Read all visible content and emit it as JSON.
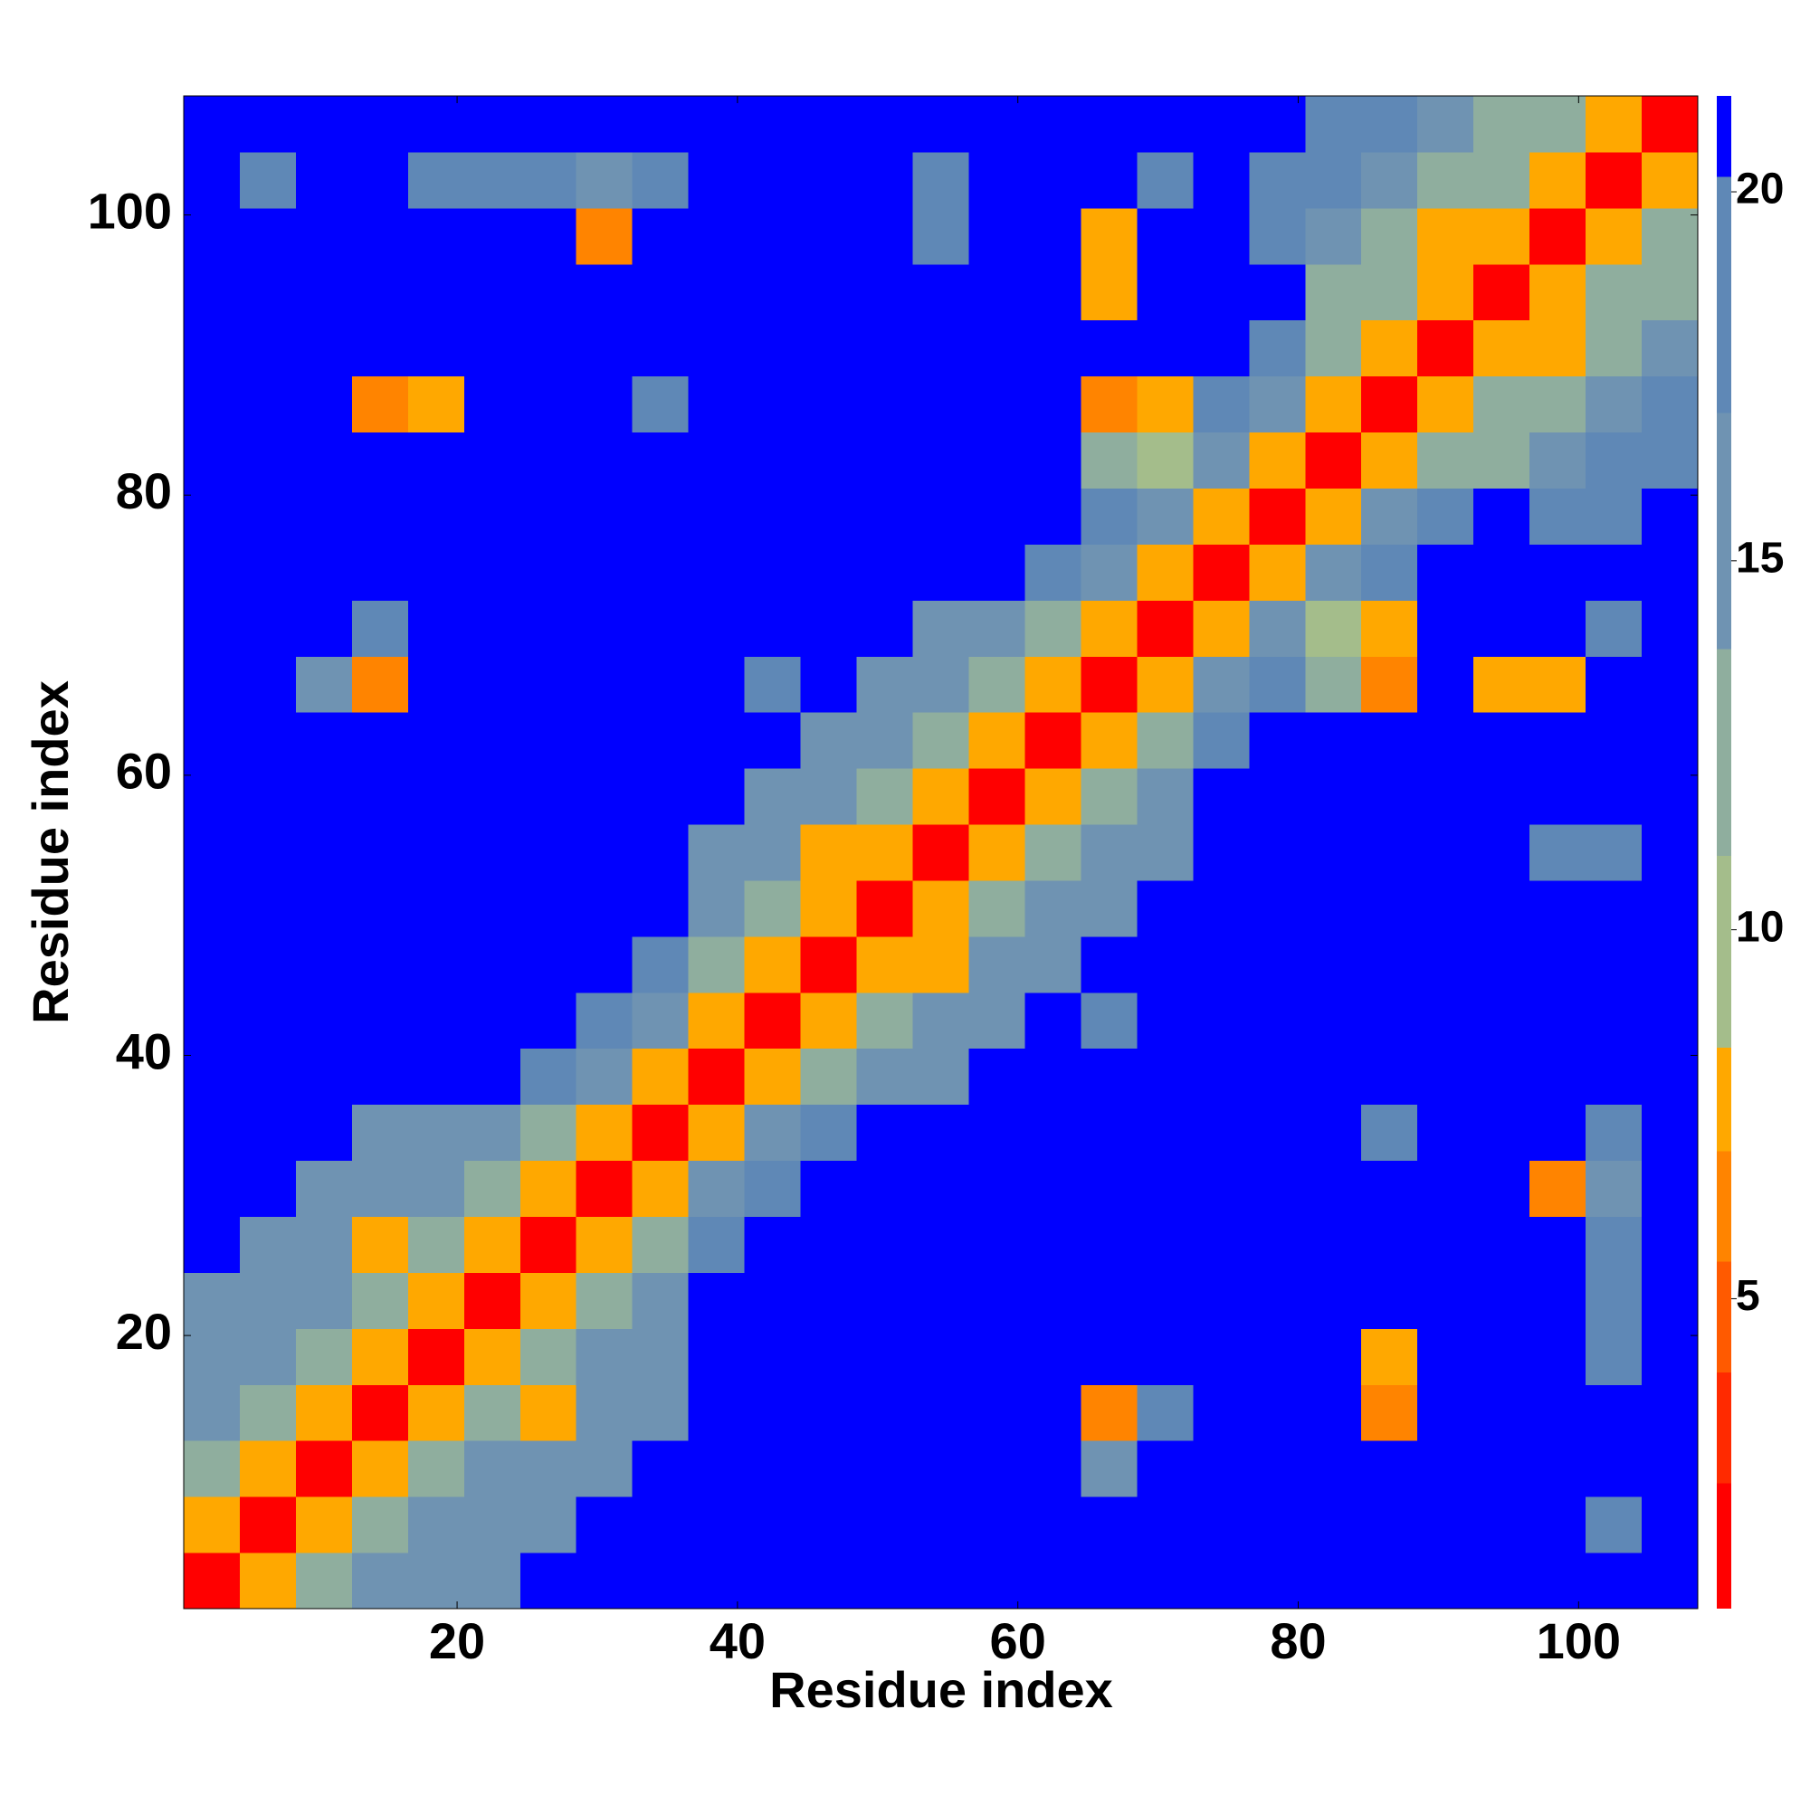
{
  "chart_data": {
    "type": "heatmap",
    "xlabel": "Residue index",
    "ylabel": "Residue index",
    "x": [
      2.5,
      6.5,
      10.5,
      14.5,
      18.5,
      22.5,
      26.5,
      30.5,
      34.5,
      38.5,
      42.5,
      46.5,
      50.5,
      54.5,
      58.5,
      62.5,
      66.5,
      70.5,
      74.5,
      78.5,
      82.5,
      86.5,
      90.5,
      94.5,
      98.5,
      102.5,
      106.5
    ],
    "y": [
      2.5,
      6.5,
      10.5,
      14.5,
      18.5,
      22.5,
      26.5,
      30.5,
      34.5,
      38.5,
      42.5,
      46.5,
      50.5,
      54.5,
      58.5,
      62.5,
      66.5,
      70.5,
      74.5,
      78.5,
      82.5,
      86.5,
      90.5,
      94.5,
      98.5,
      102.5,
      106.5
    ],
    "xlim": [
      0.5,
      108.5
    ],
    "ylim": [
      0.5,
      108.5
    ],
    "xticks": [
      20,
      40,
      60,
      80,
      100
    ],
    "yticks": [
      20,
      40,
      60,
      80,
      100
    ],
    "zlim": [
      0.8,
      21.3
    ],
    "zticks": [
      5,
      10,
      15,
      20
    ],
    "color_levels": [
      2.5,
      4,
      5.5,
      7,
      8.4,
      11,
      13.8,
      17,
      20.2
    ],
    "colors": [
      "#ff0000",
      "#ff2a00",
      "#ff5a00",
      "#ff8400",
      "#ffa800",
      "#a4bd8b",
      "#8fae9e",
      "#6f93b2",
      "#5f88b6",
      "#0000ff"
    ],
    "z": [
      [
        2,
        8,
        13,
        15,
        16,
        16,
        21,
        21,
        21,
        21,
        21,
        21,
        21,
        21,
        21,
        21,
        21,
        21,
        21,
        21,
        21,
        21,
        21,
        21,
        21,
        21,
        21
      ],
      [
        8,
        2,
        8,
        13,
        15,
        16,
        16,
        21,
        21,
        21,
        21,
        21,
        21,
        21,
        21,
        21,
        21,
        21,
        21,
        21,
        21,
        21,
        21,
        21,
        21,
        18,
        21
      ],
      [
        13,
        8,
        2,
        8,
        13,
        15,
        16,
        16,
        21,
        21,
        21,
        21,
        21,
        21,
        21,
        21,
        15,
        21,
        21,
        21,
        21,
        21,
        21,
        21,
        21,
        21,
        21
      ],
      [
        15,
        13,
        8,
        2,
        8,
        13,
        7,
        16,
        16,
        21,
        21,
        21,
        21,
        21,
        21,
        21,
        6,
        17,
        21,
        21,
        21,
        6,
        21,
        21,
        21,
        21,
        21
      ],
      [
        16,
        15,
        13,
        8,
        2,
        8,
        13,
        15,
        16,
        21,
        21,
        21,
        21,
        21,
        21,
        21,
        21,
        21,
        21,
        21,
        21,
        7,
        21,
        21,
        21,
        18,
        21
      ],
      [
        16,
        16,
        15,
        13,
        8,
        2,
        8,
        13,
        15,
        21,
        21,
        21,
        21,
        21,
        21,
        21,
        21,
        21,
        21,
        21,
        21,
        21,
        21,
        21,
        21,
        18,
        21
      ],
      [
        21,
        16,
        16,
        7,
        13,
        8,
        2,
        8,
        13,
        18,
        21,
        21,
        21,
        21,
        21,
        21,
        21,
        21,
        21,
        21,
        21,
        21,
        21,
        21,
        21,
        17,
        21
      ],
      [
        21,
        21,
        16,
        16,
        15,
        13,
        8,
        2,
        8,
        14,
        18,
        21,
        21,
        21,
        21,
        21,
        21,
        21,
        21,
        21,
        21,
        21,
        21,
        21,
        6,
        14,
        21
      ],
      [
        21,
        21,
        21,
        16,
        16,
        15,
        13,
        8,
        2,
        8,
        14,
        18,
        21,
        21,
        21,
        21,
        21,
        21,
        21,
        21,
        21,
        17,
        21,
        21,
        21,
        18,
        21
      ],
      [
        21,
        21,
        21,
        21,
        21,
        21,
        18,
        14,
        8,
        2,
        8,
        12,
        14,
        16,
        21,
        21,
        21,
        21,
        21,
        21,
        21,
        21,
        21,
        21,
        21,
        21,
        21
      ],
      [
        21,
        21,
        21,
        21,
        21,
        21,
        21,
        18,
        14,
        8,
        2,
        8,
        12,
        14,
        16,
        21,
        17,
        21,
        21,
        21,
        21,
        21,
        21,
        21,
        21,
        21,
        21
      ],
      [
        21,
        21,
        21,
        21,
        21,
        21,
        21,
        21,
        18,
        12,
        8,
        2,
        8,
        7,
        14,
        16,
        21,
        21,
        21,
        21,
        21,
        21,
        21,
        21,
        21,
        21,
        21
      ],
      [
        21,
        21,
        21,
        21,
        21,
        21,
        21,
        21,
        21,
        14,
        12,
        8,
        2,
        8,
        12,
        14,
        16,
        21,
        21,
        21,
        21,
        21,
        21,
        21,
        21,
        21,
        21
      ],
      [
        21,
        21,
        21,
        21,
        21,
        21,
        21,
        21,
        21,
        16,
        14,
        7,
        8,
        2,
        8,
        12,
        14,
        16,
        21,
        21,
        21,
        21,
        21,
        21,
        18,
        18,
        21
      ],
      [
        21,
        21,
        21,
        21,
        21,
        21,
        21,
        21,
        21,
        21,
        16,
        14,
        12,
        8,
        2,
        8,
        12,
        14,
        21,
        21,
        21,
        21,
        21,
        21,
        21,
        21,
        21
      ],
      [
        21,
        21,
        21,
        21,
        21,
        21,
        21,
        21,
        21,
        21,
        21,
        16,
        14,
        12,
        8,
        2,
        8,
        12,
        18,
        21,
        21,
        21,
        21,
        21,
        21,
        21,
        21
      ],
      [
        21,
        21,
        15,
        6,
        21,
        21,
        21,
        21,
        21,
        21,
        17,
        21,
        16,
        14,
        12,
        8,
        2,
        8,
        14,
        18,
        12,
        6,
        21,
        7,
        7,
        21,
        21
      ],
      [
        21,
        21,
        21,
        17,
        21,
        21,
        21,
        21,
        21,
        21,
        21,
        21,
        21,
        16,
        14,
        12,
        8,
        2,
        8,
        14,
        10,
        7,
        21,
        21,
        21,
        17,
        21
      ],
      [
        21,
        21,
        21,
        21,
        21,
        21,
        21,
        21,
        21,
        21,
        21,
        21,
        21,
        21,
        21,
        18,
        14,
        8,
        2,
        8,
        14,
        18,
        21,
        21,
        21,
        21,
        21
      ],
      [
        21,
        21,
        21,
        21,
        21,
        21,
        21,
        21,
        21,
        21,
        21,
        21,
        21,
        21,
        21,
        21,
        18,
        14,
        8,
        2,
        8,
        14,
        18,
        21,
        17,
        17,
        21
      ],
      [
        21,
        21,
        21,
        21,
        21,
        21,
        21,
        21,
        21,
        21,
        21,
        21,
        21,
        21,
        21,
        21,
        12,
        10,
        14,
        8,
        2,
        8,
        11,
        13,
        15,
        17,
        19
      ],
      [
        21,
        21,
        21,
        6,
        7,
        21,
        21,
        21,
        17,
        21,
        21,
        21,
        21,
        21,
        21,
        21,
        6,
        7,
        18,
        14,
        8,
        2,
        8,
        11,
        13,
        15,
        17
      ],
      [
        21,
        21,
        21,
        21,
        21,
        21,
        21,
        21,
        21,
        21,
        21,
        21,
        21,
        21,
        21,
        21,
        21,
        21,
        21,
        18,
        11,
        8,
        2,
        8,
        8,
        13,
        15
      ],
      [
        21,
        21,
        21,
        21,
        21,
        21,
        21,
        21,
        21,
        21,
        21,
        21,
        21,
        21,
        21,
        21,
        7,
        21,
        21,
        21,
        13,
        11,
        8,
        2,
        8,
        11,
        13
      ],
      [
        21,
        21,
        21,
        21,
        21,
        21,
        21,
        6,
        21,
        21,
        21,
        21,
        21,
        18,
        21,
        21,
        7,
        21,
        21,
        17,
        15,
        13,
        8,
        8,
        2,
        8,
        11
      ],
      [
        21,
        18,
        21,
        21,
        18,
        18,
        17,
        14,
        18,
        21,
        21,
        21,
        21,
        18,
        21,
        21,
        21,
        17,
        21,
        17,
        17,
        15,
        13,
        11,
        8,
        2,
        8
      ],
      [
        21,
        21,
        21,
        21,
        21,
        21,
        21,
        21,
        21,
        21,
        21,
        21,
        21,
        21,
        21,
        21,
        21,
        21,
        21,
        21,
        19,
        17,
        15,
        13,
        11,
        8,
        2
      ]
    ]
  }
}
